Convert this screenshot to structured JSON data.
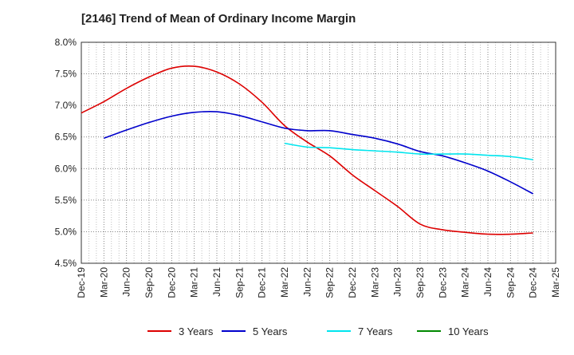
{
  "chart_data": {
    "type": "line",
    "title": "[2146]  Trend of Mean of Ordinary Income Margin",
    "xlabel": "",
    "ylabel": "",
    "ylim": [
      4.5,
      8.0
    ],
    "yticks": [
      "4.5%",
      "5.0%",
      "5.5%",
      "6.0%",
      "6.5%",
      "7.0%",
      "7.5%",
      "8.0%"
    ],
    "ytick_values": [
      4.5,
      5.0,
      5.5,
      6.0,
      6.5,
      7.0,
      7.5,
      8.0
    ],
    "categories": [
      "Dec-19",
      "Mar-20",
      "Jun-20",
      "Sep-20",
      "Dec-20",
      "Mar-21",
      "Jun-21",
      "Sep-21",
      "Dec-21",
      "Mar-22",
      "Jun-22",
      "Sep-22",
      "Dec-22",
      "Mar-23",
      "Jun-23",
      "Sep-23",
      "Dec-23",
      "Mar-24",
      "Jun-24",
      "Sep-24",
      "Dec-24",
      "Mar-25"
    ],
    "grid": true,
    "legend_position": "bottom",
    "series": [
      {
        "name": "3 Years",
        "color": "#dd0000",
        "values": [
          6.88,
          7.06,
          7.27,
          7.45,
          7.59,
          7.62,
          7.53,
          7.34,
          7.05,
          6.68,
          6.42,
          6.2,
          5.9,
          5.65,
          5.4,
          5.12,
          5.03,
          4.99,
          4.96,
          4.96,
          4.98,
          null
        ]
      },
      {
        "name": "5 Years",
        "color": "#0000cc",
        "values": [
          null,
          6.48,
          6.61,
          6.73,
          6.83,
          6.89,
          6.9,
          6.84,
          6.74,
          6.64,
          6.6,
          6.6,
          6.54,
          6.48,
          6.39,
          6.27,
          6.2,
          6.09,
          5.96,
          5.79,
          5.6,
          null
        ]
      },
      {
        "name": "7 Years",
        "color": "#00e5ee",
        "values": [
          null,
          null,
          null,
          null,
          null,
          null,
          null,
          null,
          null,
          6.4,
          6.34,
          6.33,
          6.3,
          6.28,
          6.26,
          6.23,
          6.23,
          6.23,
          6.21,
          6.19,
          6.14,
          null
        ]
      },
      {
        "name": "10 Years",
        "color": "#008800",
        "values": [
          null,
          null,
          null,
          null,
          null,
          null,
          null,
          null,
          null,
          null,
          null,
          null,
          null,
          null,
          null,
          null,
          null,
          null,
          null,
          null,
          null,
          null
        ]
      }
    ]
  }
}
